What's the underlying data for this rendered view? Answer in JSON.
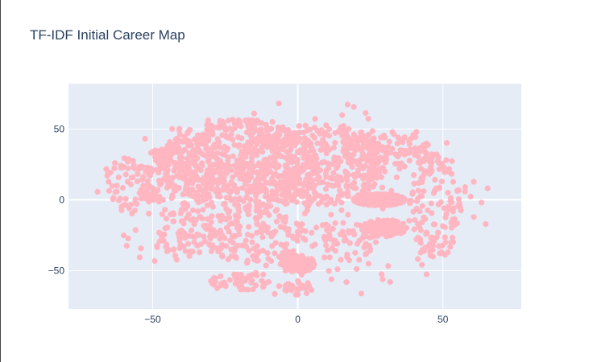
{
  "title": "TF-IDF Initial Career Map",
  "colors": {
    "plot_background": "#e5ecf6",
    "grid": "#ffffff",
    "marker": "#ffb6c1",
    "text": "#2a3f5f"
  },
  "chart_data": {
    "type": "scatter",
    "title": "TF-IDF Initial Career Map",
    "xlabel": "",
    "ylabel": "",
    "xlim": [
      -79,
      77
    ],
    "ylim": [
      -77,
      82
    ],
    "x_ticks": [
      {
        "value": -50,
        "label": "−50"
      },
      {
        "value": 0,
        "label": "0"
      },
      {
        "value": 50,
        "label": "50"
      }
    ],
    "y_ticks": [
      {
        "value": -50,
        "label": "−50"
      },
      {
        "value": 0,
        "label": "0"
      },
      {
        "value": 50,
        "label": "50"
      }
    ],
    "grid": true,
    "legend": "none",
    "marker_color": "#ffb6c1",
    "clusters": [
      {
        "cx": -20,
        "cy": 25,
        "rx": 28,
        "ry": 32,
        "n": 520
      },
      {
        "cx": 5,
        "cy": 25,
        "rx": 26,
        "ry": 30,
        "n": 420
      },
      {
        "cx": -40,
        "cy": 15,
        "rx": 16,
        "ry": 25,
        "n": 170
      },
      {
        "cx": -58,
        "cy": 10,
        "rx": 10,
        "ry": 20,
        "n": 60
      },
      {
        "cx": 28,
        "cy": 0,
        "rx": 9,
        "ry": 4,
        "n": 650
      },
      {
        "cx": 30,
        "cy": -20,
        "rx": 8,
        "ry": 6,
        "n": 130
      },
      {
        "cx": 47,
        "cy": -5,
        "rx": 9,
        "ry": 38,
        "n": 130
      },
      {
        "cx": 0,
        "cy": -45,
        "rx": 6,
        "ry": 6,
        "n": 120
      },
      {
        "cx": -15,
        "cy": -25,
        "rx": 18,
        "ry": 20,
        "n": 170
      },
      {
        "cx": -40,
        "cy": -25,
        "rx": 10,
        "ry": 18,
        "n": 60
      },
      {
        "cx": 15,
        "cy": -30,
        "rx": 12,
        "ry": 15,
        "n": 60
      },
      {
        "cx": 30,
        "cy": 35,
        "rx": 16,
        "ry": 15,
        "n": 120
      },
      {
        "cx": 0,
        "cy": -62,
        "rx": 5,
        "ry": 5,
        "n": 25
      },
      {
        "cx": -20,
        "cy": -58,
        "rx": 10,
        "ry": 6,
        "n": 40
      },
      {
        "cx": 0,
        "cy": 0,
        "rx": 70,
        "ry": 70,
        "n": 180
      }
    ]
  }
}
